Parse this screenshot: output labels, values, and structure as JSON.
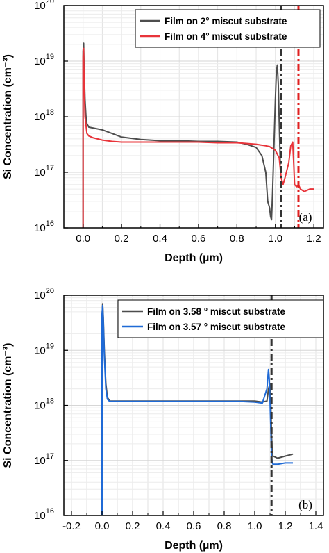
{
  "chart_data": [
    {
      "type": "line",
      "panel_label": "(a)",
      "xlabel": "Depth (µm)",
      "ylabel": "Si Concentration (cm⁻³)",
      "xlim": [
        -0.1,
        1.25
      ],
      "ylim": [
        1e+16,
        1e+20
      ],
      "yscale": "log",
      "grid": true,
      "legend_position": "top-right",
      "xticks": [
        0.0,
        0.2,
        0.4,
        0.6,
        0.8,
        1.0,
        1.2
      ],
      "xtick_labels": [
        "0.0",
        "0.2",
        "0.4",
        "0.6",
        "0.8",
        "1.0",
        "1.2"
      ],
      "yticks": [
        1e+16,
        1e+17,
        1e+18,
        1e+19,
        1e+20
      ],
      "ytick_labels": [
        [
          "10",
          "16"
        ],
        [
          "10",
          "17"
        ],
        [
          "10",
          "18"
        ],
        [
          "10",
          "19"
        ],
        [
          "10",
          "20"
        ]
      ],
      "series": [
        {
          "name": "Film on 2° miscut substrate",
          "color": "#4d4d4d",
          "x": [
            0.0,
            0.0,
            0.003,
            0.005,
            0.01,
            0.015,
            0.02,
            0.03,
            0.05,
            0.1,
            0.15,
            0.2,
            0.3,
            0.4,
            0.5,
            0.6,
            0.7,
            0.8,
            0.85,
            0.9,
            0.93,
            0.95,
            0.96,
            0.97,
            0.975,
            0.98,
            0.985,
            0.99,
            1.0,
            1.005,
            1.01,
            1.015,
            1.02,
            1.025,
            1.03
          ],
          "y": [
            1e+16,
            1.5e+19,
            2.1e+19,
            8e+18,
            2e+18,
            1e+18,
            7.5e+17,
            6.5e+17,
            6.3e+17,
            5.8e+17,
            5e+17,
            4.3e+17,
            3.9e+17,
            3.7e+17,
            3.7e+17,
            3.6e+17,
            3.6e+17,
            3.5e+17,
            3.2e+17,
            2.8e+17,
            2e+17,
            1e+17,
            3e+16,
            2.3e+16,
            1.6e+16,
            1.4e+16,
            4e+16,
            1.5e+17,
            2e+18,
            6e+18,
            8.5e+18,
            4e+18,
            8e+17,
            1.5e+17,
            1.4e+17
          ]
        },
        {
          "name": "Film on 4° miscut substrate",
          "color": "#e8343a",
          "x": [
            0.0,
            0.0,
            0.003,
            0.005,
            0.01,
            0.015,
            0.02,
            0.03,
            0.05,
            0.1,
            0.15,
            0.2,
            0.3,
            0.4,
            0.5,
            0.6,
            0.7,
            0.8,
            0.85,
            0.9,
            0.95,
            0.97,
            1.0,
            1.02,
            1.03,
            1.04,
            1.05,
            1.07,
            1.08,
            1.09,
            1.095,
            1.1,
            1.11,
            1.12,
            1.13,
            1.15,
            1.18,
            1.2
          ],
          "y": [
            1e+16,
            1.2e+19,
            1.7e+19,
            5e+18,
            1e+18,
            7e+17,
            5e+17,
            4.5e+17,
            4.2e+17,
            3.8e+17,
            3.6e+17,
            3.5e+17,
            3.5e+17,
            3.5e+17,
            3.5e+17,
            3.5e+17,
            3.4e+17,
            3.4e+17,
            3.3e+17,
            3.2e+17,
            3e+17,
            2.9e+17,
            2.5e+17,
            1.8e+17,
            8e+16,
            6e+16,
            8e+16,
            1.5e+17,
            3e+17,
            3.5e+17,
            1.5e+17,
            6e+16,
            5.5e+16,
            6e+16,
            5e+16,
            4.5e+16,
            5e+16,
            5e+16
          ]
        }
      ],
      "vlines": [
        {
          "x": 1.03,
          "color": "#333333"
        },
        {
          "x": 1.12,
          "color": "#e02020"
        }
      ]
    },
    {
      "type": "line",
      "panel_label": "(b)",
      "xlabel": "Depth (µm)",
      "ylabel": "Si Concentration (cm⁻³)",
      "xlim": [
        -0.25,
        1.45
      ],
      "ylim": [
        1e+16,
        1e+20
      ],
      "yscale": "log",
      "grid": true,
      "legend_position": "top-right",
      "xticks": [
        -0.2,
        0.0,
        0.2,
        0.4,
        0.6,
        0.8,
        1.0,
        1.2,
        1.4
      ],
      "xtick_labels": [
        "-0.2",
        "0.0",
        "0.2",
        "0.4",
        "0.6",
        "0.8",
        "1.0",
        "1.2",
        "1.4"
      ],
      "yticks": [
        1e+16,
        1e+17,
        1e+18,
        1e+19,
        1e+20
      ],
      "ytick_labels": [
        [
          "10",
          "16"
        ],
        [
          "10",
          "17"
        ],
        [
          "10",
          "18"
        ],
        [
          "10",
          "19"
        ],
        [
          "10",
          "20"
        ]
      ],
      "series": [
        {
          "name": "Film on 3.58 ° miscut substrate",
          "color": "#4d4d4d",
          "x": [
            0.0,
            0.0,
            0.004,
            0.008,
            0.015,
            0.025,
            0.035,
            0.05,
            0.1,
            0.2,
            0.3,
            0.4,
            0.5,
            0.6,
            0.7,
            0.8,
            0.9,
            1.0,
            1.05,
            1.08,
            1.09,
            1.1,
            1.105,
            1.11,
            1.115,
            1.12,
            1.15,
            1.2,
            1.25
          ],
          "y": [
            1e+16,
            4e+19,
            7e+19,
            4e+19,
            1e+19,
            2.5e+18,
            1.4e+18,
            1.2e+18,
            1.2e+18,
            1.2e+18,
            1.2e+18,
            1.2e+18,
            1.2e+18,
            1.2e+18,
            1.2e+18,
            1.2e+18,
            1.2e+18,
            1.2e+18,
            1.15e+18,
            1.2e+18,
            2e+18,
            2.5e+18,
            1.2e+18,
            3e+17,
            1.3e+17,
            1.2e+17,
            1.1e+17,
            1.2e+17,
            1.3e+17
          ]
        },
        {
          "name": "Film on 3.57 ° miscut substrate",
          "color": "#1f6ad6",
          "x": [
            0.0,
            0.0,
            0.004,
            0.008,
            0.015,
            0.025,
            0.035,
            0.05,
            0.1,
            0.2,
            0.3,
            0.4,
            0.5,
            0.6,
            0.7,
            0.8,
            0.9,
            1.0,
            1.05,
            1.08,
            1.09,
            1.095,
            1.1,
            1.105,
            1.11,
            1.115,
            1.12,
            1.15,
            1.2,
            1.25
          ],
          "y": [
            1e+16,
            4.5e+19,
            6.5e+19,
            3.5e+19,
            8e+18,
            2e+18,
            1.3e+18,
            1.18e+18,
            1.18e+18,
            1.18e+18,
            1.18e+18,
            1.18e+18,
            1.18e+18,
            1.18e+18,
            1.18e+18,
            1.18e+18,
            1.18e+18,
            1.15e+18,
            1.1e+18,
            2e+18,
            4.5e+18,
            3e+18,
            1.2e+18,
            4e+17,
            1.2e+17,
            9e+16,
            8.5e+16,
            8.5e+16,
            9e+16,
            9e+16
          ]
        }
      ],
      "vlines": [
        {
          "x": 1.11,
          "color": "#333333"
        }
      ]
    }
  ]
}
